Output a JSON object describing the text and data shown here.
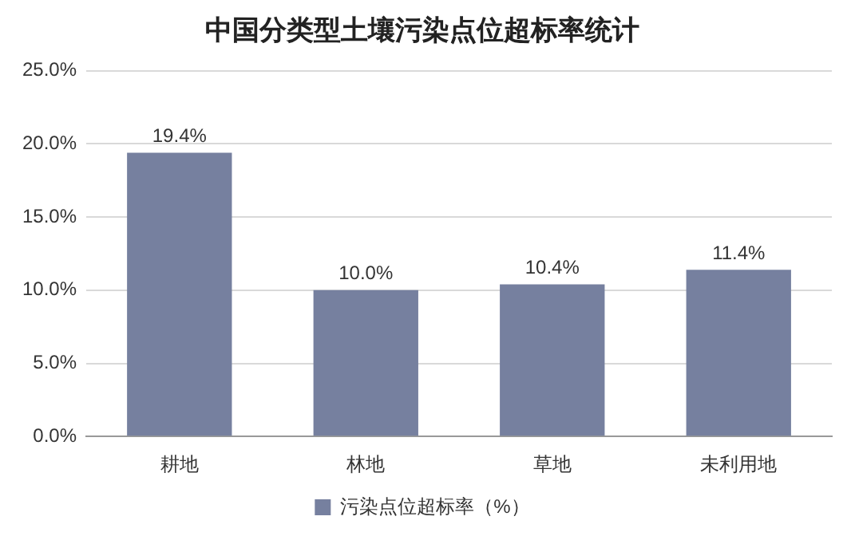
{
  "chart_data": {
    "type": "bar",
    "title": "中国分类型土壤污染点位超标率统计",
    "categories": [
      "耕地",
      "林地",
      "草地",
      "未利用地"
    ],
    "series": [
      {
        "name": "污染点位超标率（%）",
        "color": "#76809f",
        "values": [
          19.4,
          10.0,
          10.4,
          11.4
        ],
        "value_labels": [
          "19.4%",
          "10.0%",
          "10.4%",
          "11.4%"
        ]
      }
    ],
    "ylim": [
      0,
      25
    ],
    "yticks": [
      {
        "value": 0,
        "label": "0.0%"
      },
      {
        "value": 5,
        "label": "5.0%"
      },
      {
        "value": 10,
        "label": "10.0%"
      },
      {
        "value": 15,
        "label": "15.0%"
      },
      {
        "value": 20,
        "label": "20.0%"
      },
      {
        "value": 25,
        "label": "25.0%"
      }
    ],
    "grid": "y",
    "legend": "bottom"
  }
}
